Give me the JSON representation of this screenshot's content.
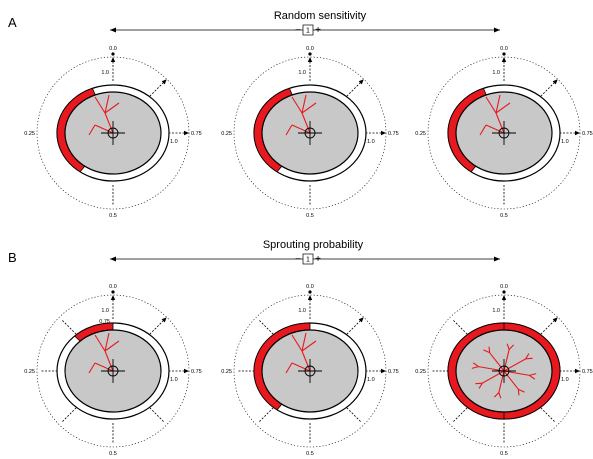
{
  "panels": [
    {
      "letter": "A",
      "title": "Random sensitivity",
      "minus": "−",
      "plus": "+",
      "box_value": "1",
      "diagrams": [
        {
          "dashes": 4,
          "red_from": 0.06,
          "red_to": 0.4,
          "sprouts": "few"
        },
        {
          "dashes": 4,
          "red_from": 0.06,
          "red_to": 0.4,
          "sprouts": "few"
        },
        {
          "dashes": 4,
          "red_from": 0.06,
          "red_to": 0.4,
          "sprouts": "few"
        }
      ]
    },
    {
      "letter": "B",
      "title": "Sprouting probability",
      "minus": "−",
      "plus": "+",
      "box_value": "1",
      "diagrams": [
        {
          "dashes": 8,
          "red_from": 0.0,
          "red_to": 0.12,
          "sprouts": "few"
        },
        {
          "dashes": 8,
          "red_from": 0.0,
          "red_to": 0.4,
          "sprouts": "few"
        },
        {
          "dashes": 8,
          "red_from": 0.0,
          "red_to": 1.0,
          "sprouts": "many"
        }
      ]
    }
  ],
  "ticks": {
    "top": "0.0",
    "top_inner": "1.0",
    "right": "0.75",
    "right_inner": "1.0",
    "left": "0.25",
    "bottom": "0.5",
    "inner_075": "0.75"
  },
  "colors": {
    "red": "#e8191e",
    "cell": "#c8c8c8",
    "outline": "#000000"
  }
}
